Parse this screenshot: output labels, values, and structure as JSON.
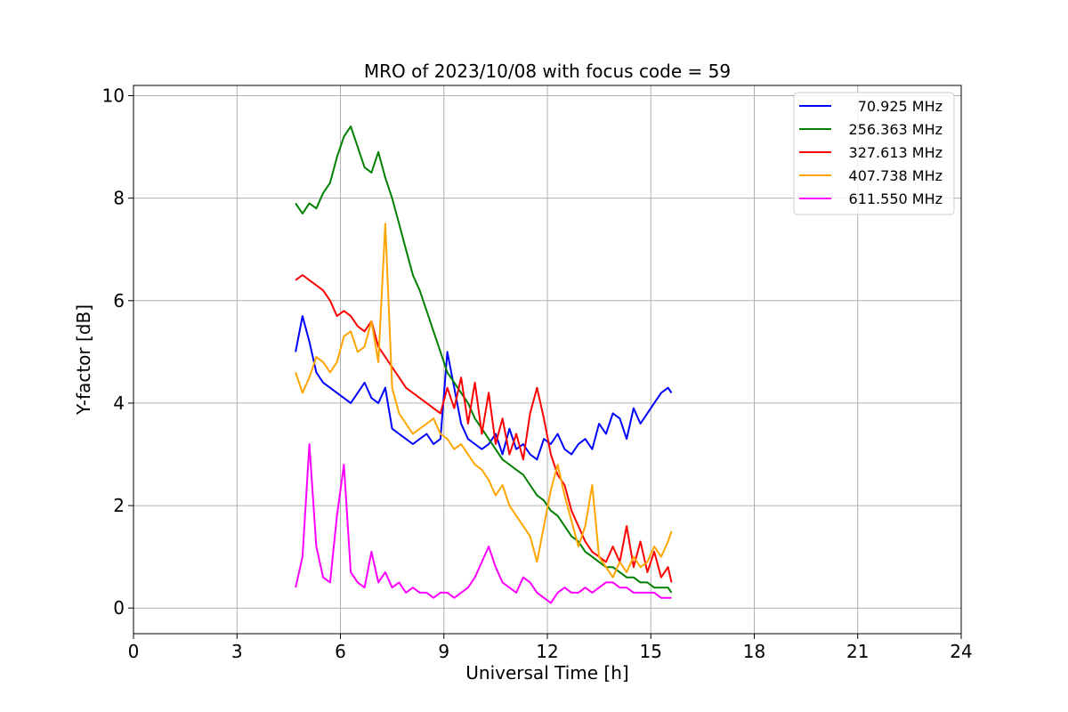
{
  "chart_data": {
    "type": "line",
    "title": "MRO of 2023/10/08 with focus code = 59",
    "xlabel": "Universal Time [h]",
    "ylabel": "Y-factor [dB]",
    "xlim": [
      0,
      24
    ],
    "ylim": [
      -0.5,
      10.2
    ],
    "xticks": [
      0,
      3,
      6,
      9,
      12,
      15,
      18,
      21,
      24
    ],
    "yticks": [
      0,
      2,
      4,
      6,
      8,
      10
    ],
    "grid": true,
    "legend_position": "top-right",
    "series": [
      {
        "name": " 70.925 MHz",
        "color": "#0000ff",
        "x": [
          4.7,
          4.9,
          5.1,
          5.3,
          5.5,
          5.7,
          5.9,
          6.1,
          6.3,
          6.5,
          6.7,
          6.9,
          7.1,
          7.3,
          7.5,
          7.7,
          7.9,
          8.1,
          8.3,
          8.5,
          8.7,
          8.9,
          9.1,
          9.3,
          9.5,
          9.7,
          9.9,
          10.1,
          10.3,
          10.5,
          10.7,
          10.9,
          11.1,
          11.3,
          11.5,
          11.7,
          11.9,
          12.1,
          12.3,
          12.5,
          12.7,
          12.9,
          13.1,
          13.3,
          13.5,
          13.7,
          13.9,
          14.1,
          14.3,
          14.5,
          14.7,
          14.9,
          15.1,
          15.3,
          15.5,
          15.6
        ],
        "values": [
          5.0,
          5.7,
          5.2,
          4.6,
          4.4,
          4.3,
          4.2,
          4.1,
          4.0,
          4.2,
          4.4,
          4.1,
          4.0,
          4.3,
          3.5,
          3.4,
          3.3,
          3.2,
          3.3,
          3.4,
          3.2,
          3.3,
          5.0,
          4.3,
          3.6,
          3.3,
          3.2,
          3.1,
          3.2,
          3.4,
          3.0,
          3.5,
          3.1,
          3.2,
          3.0,
          2.9,
          3.3,
          3.2,
          3.4,
          3.1,
          3.0,
          3.2,
          3.3,
          3.1,
          3.6,
          3.4,
          3.8,
          3.7,
          3.3,
          3.9,
          3.6,
          3.8,
          4.0,
          4.2,
          4.3,
          4.2
        ]
      },
      {
        "name": "256.363 MHz",
        "color": "#008000",
        "x": [
          4.7,
          4.9,
          5.1,
          5.3,
          5.5,
          5.7,
          5.9,
          6.1,
          6.3,
          6.5,
          6.7,
          6.9,
          7.1,
          7.3,
          7.5,
          7.7,
          7.9,
          8.1,
          8.3,
          8.5,
          8.7,
          8.9,
          9.1,
          9.3,
          9.5,
          9.7,
          9.9,
          10.1,
          10.3,
          10.5,
          10.7,
          10.9,
          11.1,
          11.3,
          11.5,
          11.7,
          11.9,
          12.1,
          12.3,
          12.5,
          12.7,
          12.9,
          13.1,
          13.3,
          13.5,
          13.7,
          13.9,
          14.1,
          14.3,
          14.5,
          14.7,
          14.9,
          15.1,
          15.3,
          15.5,
          15.6
        ],
        "values": [
          7.9,
          7.7,
          7.9,
          7.8,
          8.1,
          8.3,
          8.8,
          9.2,
          9.4,
          9.0,
          8.6,
          8.5,
          8.9,
          8.4,
          8.0,
          7.5,
          7.0,
          6.5,
          6.2,
          5.8,
          5.4,
          5.0,
          4.6,
          4.4,
          4.2,
          4.0,
          3.7,
          3.5,
          3.3,
          3.1,
          2.9,
          2.8,
          2.7,
          2.6,
          2.4,
          2.2,
          2.1,
          1.9,
          1.8,
          1.6,
          1.4,
          1.3,
          1.1,
          1.0,
          0.9,
          0.8,
          0.8,
          0.7,
          0.6,
          0.6,
          0.5,
          0.5,
          0.4,
          0.4,
          0.4,
          0.3
        ]
      },
      {
        "name": "327.613 MHz",
        "color": "#ff0000",
        "x": [
          4.7,
          4.9,
          5.1,
          5.3,
          5.5,
          5.7,
          5.9,
          6.1,
          6.3,
          6.5,
          6.7,
          6.9,
          7.1,
          7.3,
          7.5,
          7.7,
          7.9,
          8.1,
          8.3,
          8.5,
          8.7,
          8.9,
          9.1,
          9.3,
          9.5,
          9.7,
          9.9,
          10.1,
          10.3,
          10.5,
          10.7,
          10.9,
          11.1,
          11.3,
          11.5,
          11.7,
          11.9,
          12.1,
          12.3,
          12.5,
          12.7,
          12.9,
          13.1,
          13.3,
          13.5,
          13.7,
          13.9,
          14.1,
          14.3,
          14.5,
          14.7,
          14.9,
          15.1,
          15.3,
          15.5,
          15.6
        ],
        "values": [
          6.4,
          6.5,
          6.4,
          6.3,
          6.2,
          6.0,
          5.7,
          5.8,
          5.7,
          5.5,
          5.4,
          5.6,
          5.1,
          4.9,
          4.7,
          4.5,
          4.3,
          4.2,
          4.1,
          4.0,
          3.9,
          3.8,
          4.3,
          3.9,
          4.5,
          3.6,
          4.4,
          3.4,
          4.2,
          3.2,
          3.7,
          3.0,
          3.4,
          2.9,
          3.8,
          4.3,
          3.7,
          3.0,
          2.6,
          2.4,
          1.9,
          1.6,
          1.3,
          1.1,
          1.0,
          0.9,
          1.2,
          0.9,
          1.6,
          0.8,
          1.3,
          0.7,
          1.1,
          0.6,
          0.8,
          0.5
        ]
      },
      {
        "name": "407.738 MHz",
        "color": "#ffa500",
        "x": [
          4.7,
          4.9,
          5.1,
          5.3,
          5.5,
          5.7,
          5.9,
          6.1,
          6.3,
          6.5,
          6.7,
          6.9,
          7.1,
          7.3,
          7.5,
          7.7,
          7.9,
          8.1,
          8.3,
          8.5,
          8.7,
          8.9,
          9.1,
          9.3,
          9.5,
          9.7,
          9.9,
          10.1,
          10.3,
          10.5,
          10.7,
          10.9,
          11.1,
          11.3,
          11.5,
          11.7,
          11.9,
          12.1,
          12.3,
          12.5,
          12.7,
          12.9,
          13.1,
          13.3,
          13.5,
          13.7,
          13.9,
          14.1,
          14.3,
          14.5,
          14.7,
          14.9,
          15.1,
          15.3,
          15.5,
          15.6
        ],
        "values": [
          4.6,
          4.2,
          4.5,
          4.9,
          4.8,
          4.6,
          4.8,
          5.3,
          5.4,
          5.0,
          5.1,
          5.6,
          4.8,
          7.5,
          4.3,
          3.8,
          3.6,
          3.4,
          3.5,
          3.6,
          3.7,
          3.4,
          3.3,
          3.1,
          3.2,
          3.0,
          2.8,
          2.7,
          2.5,
          2.2,
          2.4,
          2.0,
          1.8,
          1.6,
          1.4,
          0.9,
          1.6,
          2.3,
          2.8,
          2.2,
          1.7,
          1.2,
          1.6,
          2.4,
          1.0,
          0.8,
          0.6,
          0.9,
          0.7,
          1.0,
          0.8,
          0.9,
          1.2,
          1.0,
          1.3,
          1.5
        ]
      },
      {
        "name": "611.550 MHz",
        "color": "#ff00ff",
        "x": [
          4.7,
          4.9,
          5.1,
          5.3,
          5.5,
          5.7,
          5.9,
          6.1,
          6.3,
          6.5,
          6.7,
          6.9,
          7.1,
          7.3,
          7.5,
          7.7,
          7.9,
          8.1,
          8.3,
          8.5,
          8.7,
          8.9,
          9.1,
          9.3,
          9.5,
          9.7,
          9.9,
          10.1,
          10.3,
          10.5,
          10.7,
          10.9,
          11.1,
          11.3,
          11.5,
          11.7,
          11.9,
          12.1,
          12.3,
          12.5,
          12.7,
          12.9,
          13.1,
          13.3,
          13.5,
          13.7,
          13.9,
          14.1,
          14.3,
          14.5,
          14.7,
          14.9,
          15.1,
          15.3,
          15.5,
          15.6
        ],
        "values": [
          0.4,
          1.0,
          3.2,
          1.2,
          0.6,
          0.5,
          1.8,
          2.8,
          0.7,
          0.5,
          0.4,
          1.1,
          0.5,
          0.7,
          0.4,
          0.5,
          0.3,
          0.4,
          0.3,
          0.3,
          0.2,
          0.3,
          0.3,
          0.2,
          0.3,
          0.4,
          0.6,
          0.9,
          1.2,
          0.8,
          0.5,
          0.4,
          0.3,
          0.6,
          0.5,
          0.3,
          0.2,
          0.1,
          0.3,
          0.4,
          0.3,
          0.3,
          0.4,
          0.3,
          0.4,
          0.5,
          0.5,
          0.4,
          0.4,
          0.3,
          0.3,
          0.3,
          0.3,
          0.2,
          0.2,
          0.2
        ]
      }
    ]
  }
}
